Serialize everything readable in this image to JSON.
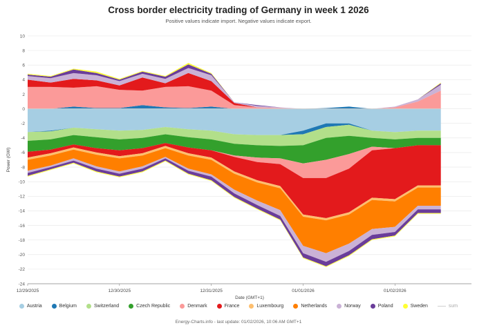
{
  "header": {
    "title": "Cross border electricity trading of Germany in week 1 2026",
    "subtitle": "Positive values indicate import. Negative values indicate export."
  },
  "footer": {
    "credit": "Energy-Charts.info - last update: 01/02/2026, 10:06 AM GMT+1"
  },
  "chart_data": {
    "type": "area",
    "stacked": true,
    "title": "Cross border electricity trading of Germany in week 1 2026",
    "subtitle": "Positive values indicate import. Negative values indicate export.",
    "xlabel": "Date (GMT+1)",
    "ylabel": "Power (GW)",
    "ylim": [
      -24,
      10
    ],
    "yticks": [
      10,
      8,
      6,
      4,
      2,
      0,
      -2,
      -4,
      -6,
      -8,
      -10,
      -12,
      -14,
      -16,
      -18,
      -20,
      -22,
      -24
    ],
    "xticks": [
      "12/29/2025",
      "12/30/2025",
      "12/31/2025",
      "01/01/2026",
      "01/02/2026"
    ],
    "grid": true,
    "legend_position": "bottom",
    "x_hours": [
      0,
      6,
      12,
      18,
      24,
      30,
      36,
      42,
      48,
      54,
      60,
      66,
      72,
      78,
      84,
      90,
      96,
      102,
      108
    ],
    "series": [
      {
        "name": "Austria",
        "color": "#a6cee3",
        "import": [
          0,
          0,
          0,
          0,
          0,
          0,
          0,
          0,
          0,
          0,
          0,
          0,
          0,
          0,
          0,
          0,
          0,
          0,
          0
        ],
        "export": [
          -3.2,
          -3.0,
          -2.6,
          -2.8,
          -3.0,
          -2.9,
          -2.5,
          -2.8,
          -3.0,
          -3.5,
          -3.6,
          -3.6,
          -3.0,
          -2.0,
          -2.0,
          -3.0,
          -3.2,
          -3.0,
          -3.0
        ]
      },
      {
        "name": "Belgium",
        "color": "#1f78b4",
        "import": [
          0,
          0,
          0.3,
          0.1,
          0.1,
          0.5,
          0.2,
          0.1,
          0.3,
          0,
          0,
          0,
          0,
          0.1,
          0.3,
          0,
          0,
          0,
          0
        ],
        "export": [
          0,
          -0.1,
          0,
          0,
          0,
          0,
          0,
          0,
          0,
          0,
          0,
          0,
          -0.5,
          -0.5,
          -0.2,
          0,
          0,
          0,
          0
        ]
      },
      {
        "name": "Switzerland",
        "color": "#b2df8a",
        "import": [
          0,
          0,
          0,
          0,
          0,
          0,
          0,
          0,
          0,
          0,
          0,
          0,
          0,
          0,
          0,
          0,
          0,
          0,
          0
        ],
        "export": [
          -1.2,
          -1.1,
          -1.0,
          -1.1,
          -1.2,
          -1.1,
          -1.0,
          -1.1,
          -1.2,
          -1.3,
          -1.4,
          -1.5,
          -1.5,
          -1.5,
          -1.5,
          -1.0,
          -1.0,
          -1.0,
          -1.0
        ]
      },
      {
        "name": "Czech Republic",
        "color": "#33a02c",
        "import": [
          0,
          0,
          0,
          0,
          0,
          0,
          0,
          0,
          0,
          0,
          0,
          0,
          0,
          0,
          0,
          0,
          0,
          0,
          0
        ],
        "export": [
          -1.5,
          -1.4,
          -1.3,
          -1.5,
          -1.5,
          -1.4,
          -1.2,
          -1.4,
          -1.5,
          -1.6,
          -1.7,
          -1.7,
          -2.5,
          -3.0,
          -2.5,
          -1.2,
          -1.2,
          -1.0,
          -1.0
        ]
      },
      {
        "name": "Denmark",
        "color": "#fb9a99",
        "import": [
          3.0,
          3.0,
          2.6,
          3.0,
          2.5,
          2.0,
          2.8,
          3.0,
          2.2,
          0.5,
          0.2,
          0.1,
          0,
          0,
          0,
          0,
          0.2,
          1.0,
          2.5
        ],
        "export": [
          0,
          0,
          0,
          0,
          0,
          0,
          0,
          0,
          0,
          -0.2,
          -0.6,
          -0.8,
          -2.0,
          -2.5,
          -2.0,
          -0.5,
          0,
          0,
          0
        ]
      },
      {
        "name": "France",
        "color": "#e31a1c",
        "import": [
          1.0,
          0.6,
          1.2,
          0.8,
          0.6,
          1.8,
          0.5,
          1.8,
          1.3,
          0.3,
          0,
          0,
          0,
          0,
          0,
          0,
          0,
          0,
          0
        ],
        "export": [
          -0.8,
          -0.5,
          -0.4,
          -0.6,
          -0.8,
          -0.7,
          -0.4,
          -0.8,
          -1.0,
          -2.0,
          -2.5,
          -3.0,
          -5.0,
          -5.5,
          -6.0,
          -6.5,
          -7.0,
          -5.5,
          -5.5
        ]
      },
      {
        "name": "Luxembourg",
        "color": "#fdbf6f",
        "import": [
          0,
          0,
          0,
          0,
          0,
          0,
          0,
          0,
          0,
          0,
          0,
          0,
          0,
          0,
          0,
          0,
          0,
          0,
          0
        ],
        "export": [
          -0.3,
          -0.3,
          -0.3,
          -0.3,
          -0.3,
          -0.3,
          -0.3,
          -0.3,
          -0.3,
          -0.3,
          -0.3,
          -0.3,
          -0.3,
          -0.3,
          -0.3,
          -0.3,
          -0.3,
          -0.3,
          -0.3
        ]
      },
      {
        "name": "Netherlands",
        "color": "#ff7f00",
        "import": [
          0,
          0,
          0,
          0,
          0,
          0,
          0,
          0,
          0,
          0,
          0,
          0,
          0,
          0,
          0,
          0,
          0,
          0,
          0
        ],
        "export": [
          -1.5,
          -1.4,
          -1.2,
          -1.6,
          -1.8,
          -1.5,
          -1.2,
          -1.8,
          -2.0,
          -2.2,
          -2.5,
          -3.0,
          -4.0,
          -4.5,
          -4.0,
          -4.0,
          -3.5,
          -2.5,
          -2.5
        ]
      },
      {
        "name": "Norway",
        "color": "#cab2d6",
        "import": [
          0.5,
          0.6,
          0.8,
          0.7,
          0.6,
          0.5,
          0.6,
          0.7,
          0.8,
          0.1,
          0.2,
          0.1,
          0,
          0,
          0,
          0,
          0.1,
          0.3,
          0.8
        ],
        "export": [
          -0.3,
          -0.2,
          -0.3,
          -0.3,
          -0.3,
          -0.3,
          -0.2,
          -0.3,
          -0.3,
          -0.5,
          -0.6,
          -0.8,
          -1.0,
          -1.2,
          -1.0,
          -0.8,
          -0.7,
          -0.5,
          -0.5
        ]
      },
      {
        "name": "Poland",
        "color": "#6a3d9a",
        "import": [
          0.2,
          0.2,
          0.5,
          0.3,
          0.2,
          0.3,
          0.3,
          0.5,
          0.2,
          0,
          0.1,
          0,
          0,
          0,
          0,
          0,
          0,
          0,
          0.2
        ],
        "export": [
          -0.4,
          -0.3,
          -0.3,
          -0.4,
          -0.4,
          -0.4,
          -0.3,
          -0.4,
          -0.5,
          -0.5,
          -0.5,
          -0.5,
          -0.6,
          -0.6,
          -0.6,
          -0.6,
          -0.5,
          -0.5,
          -0.5
        ]
      },
      {
        "name": "Sweden",
        "color": "#ffff33",
        "import": [
          0.1,
          0.1,
          0.1,
          0.2,
          0.1,
          0.1,
          0.1,
          0.2,
          0.1,
          0,
          0,
          0,
          0,
          0,
          0,
          0,
          0,
          0,
          0.1
        ],
        "export": [
          -0.1,
          -0.1,
          -0.1,
          -0.1,
          -0.1,
          -0.1,
          -0.1,
          -0.1,
          -0.1,
          -0.1,
          -0.1,
          -0.1,
          -0.1,
          -0.1,
          -0.1,
          -0.1,
          -0.1,
          -0.1,
          -0.1
        ]
      },
      {
        "name": "sum",
        "color": "#cfcfcf",
        "is_line": true,
        "values": [
          0,
          0,
          0,
          0,
          0,
          0,
          0,
          0,
          0,
          0,
          0,
          0,
          0,
          0,
          0,
          0,
          0,
          0,
          0
        ]
      }
    ]
  }
}
